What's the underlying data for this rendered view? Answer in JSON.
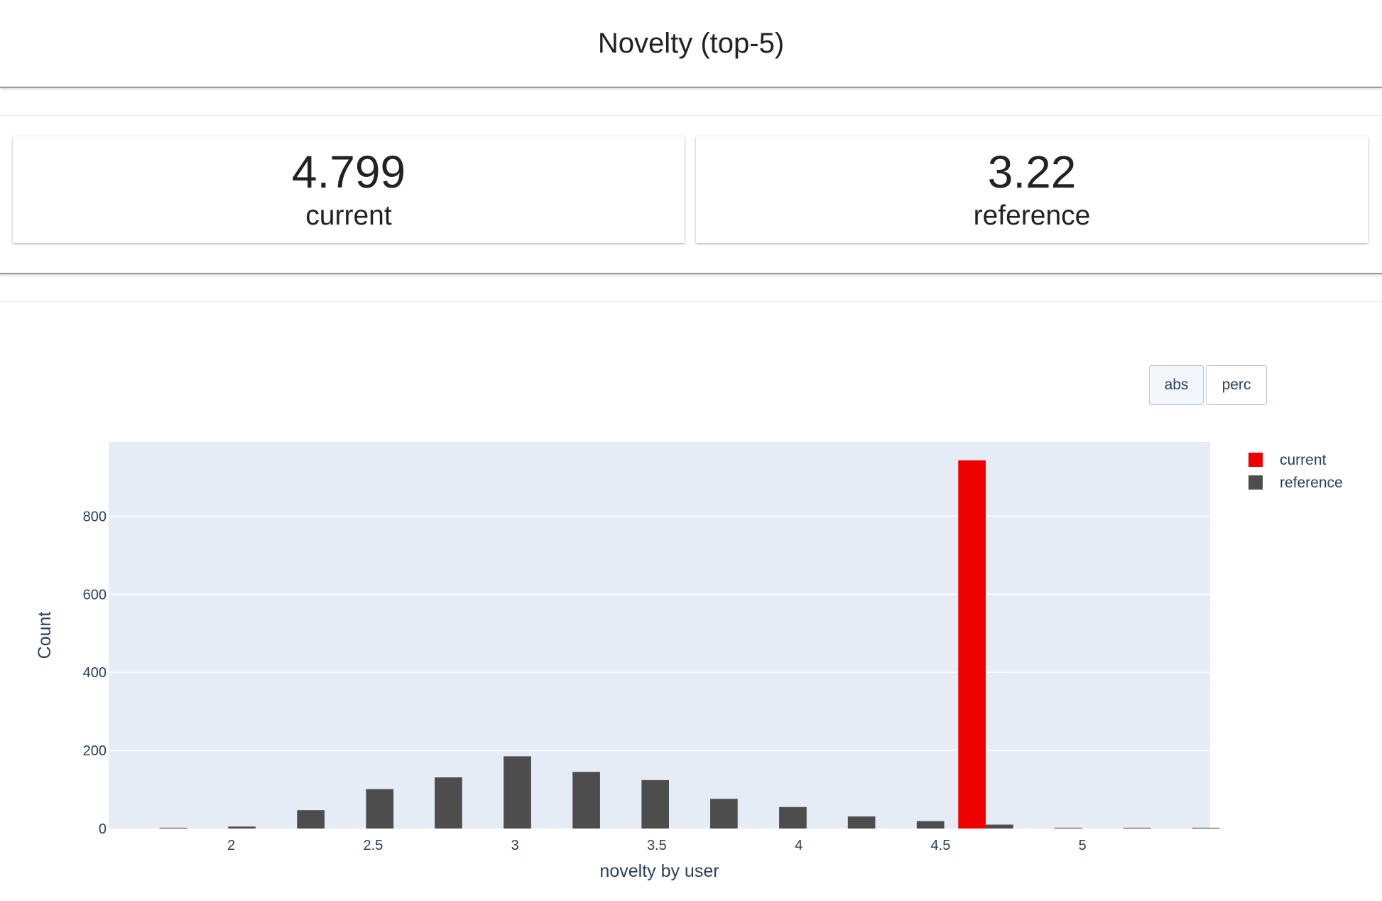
{
  "header": {
    "title": "Novelty (top-5)"
  },
  "counters": [
    {
      "value": "4.799",
      "label": "current"
    },
    {
      "value": "3.22",
      "label": "reference"
    }
  ],
  "buttons": {
    "abs_label": "abs",
    "perc_label": "perc"
  },
  "colors": {
    "current": "#ee0000",
    "reference": "#4d4d4d",
    "plot_bg": "#e5ecf6",
    "axis_text": "#2a3f5f"
  },
  "chart_data": {
    "type": "bar",
    "xlabel": "novelty by user",
    "ylabel": "Count",
    "xlim": [
      1.568,
      5.45
    ],
    "ylim": [
      0,
      990
    ],
    "x_ticks": [
      2,
      2.5,
      3,
      3.5,
      4,
      4.5,
      5
    ],
    "x_tick_labels": [
      "2",
      "2.5",
      "3",
      "3.5",
      "4",
      "4.5",
      "5"
    ],
    "y_ticks": [
      0,
      200,
      400,
      600,
      800
    ],
    "y_tick_labels": [
      "0",
      "200",
      "400",
      "600",
      "800"
    ],
    "grid": true,
    "legend_position": "top-right",
    "x": [
      1.747,
      1.989,
      2.232,
      2.475,
      2.717,
      2.96,
      3.203,
      3.446,
      3.688,
      3.931,
      4.173,
      4.416,
      4.659,
      4.901,
      5.144,
      5.387
    ],
    "series": [
      {
        "name": "current",
        "color": "#ee0000",
        "values": [
          0,
          0,
          0,
          0,
          0,
          0,
          0,
          0,
          0,
          0,
          0,
          0,
          943,
          0,
          0,
          0
        ]
      },
      {
        "name": "reference",
        "color": "#4d4d4d",
        "values": [
          2,
          5,
          47,
          101,
          131,
          185,
          145,
          124,
          76,
          55,
          31,
          19,
          10,
          2,
          2,
          2
        ]
      }
    ]
  }
}
